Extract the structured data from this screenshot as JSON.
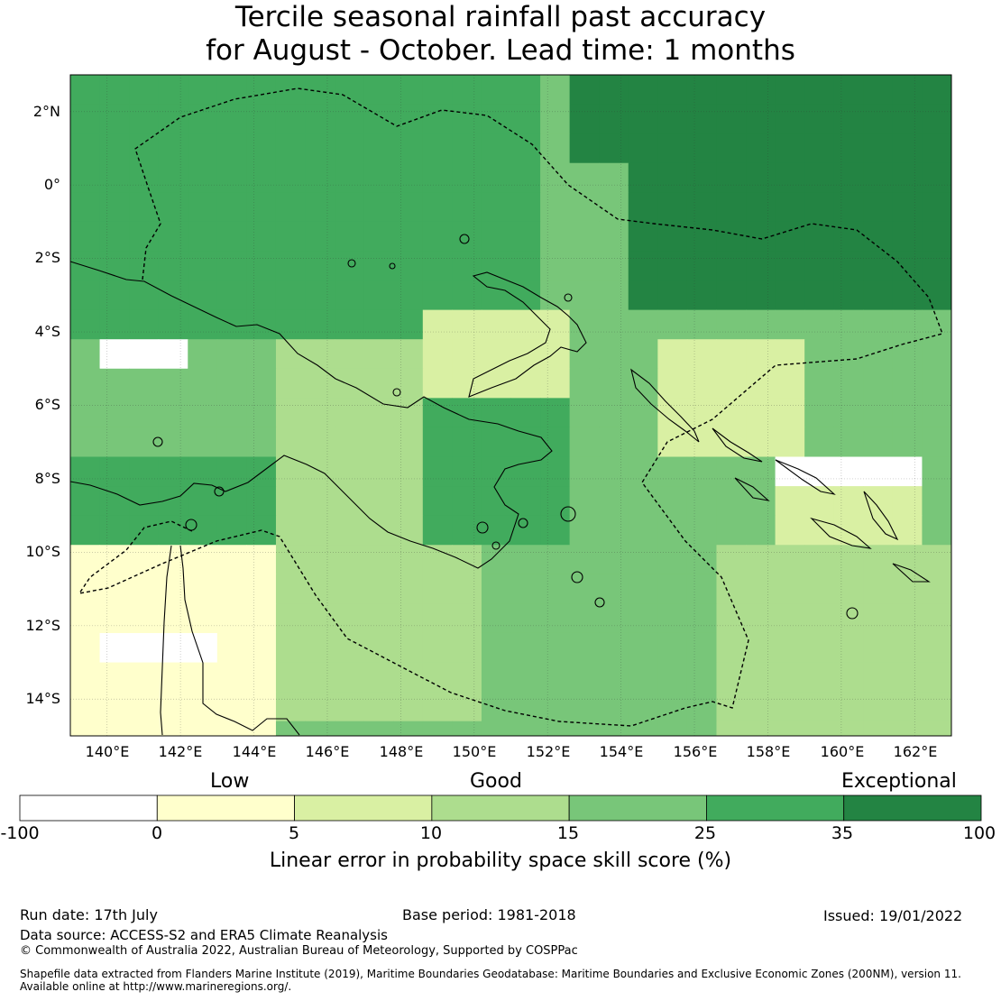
{
  "title": {
    "line1": "Tercile seasonal rainfall past accuracy",
    "line2": "for August - October. Lead time: 1 months"
  },
  "map": {
    "lon_range": [
      139,
      163
    ],
    "lat_range": [
      -15,
      3
    ],
    "lat_ticks": [
      "2°N",
      "0°",
      "2°S",
      "4°S",
      "6°S",
      "8°S",
      "10°S",
      "12°S",
      "14°S"
    ],
    "lon_ticks": [
      "140°E",
      "142°E",
      "144°E",
      "146°E",
      "148°E",
      "150°E",
      "152°E",
      "154°E",
      "156°E",
      "158°E",
      "160°E",
      "162°E"
    ]
  },
  "colorbar": {
    "categories": [
      "Low",
      "Good",
      "Exceptional"
    ],
    "ticks": [
      "-100",
      "0",
      "5",
      "10",
      "15",
      "25",
      "35",
      "100"
    ],
    "colors": [
      "#ffffff",
      "#ffffcc",
      "#d9f0a3",
      "#addd8e",
      "#78c679",
      "#41ab5d",
      "#238443"
    ],
    "label": "Linear error in probability space skill score (%)"
  },
  "footer": {
    "run_date": "Run date: 17th July",
    "base_period": "Base period: 1981-2018",
    "issued": "Issued: 19/01/2022",
    "data_source": "Data source: ACCESS-S2 and ERA5 Climate Reanalysis",
    "copyright": "© Commonwealth of Australia 2022, Australian Bureau of Meteorology, Supported by COSPPac",
    "shapefile_line1": "Shapefile data extracted from Flanders Marine Institute (2019), Maritime Boundaries Geodatabase: Maritime Boundaries and Exclusive Economic Zones (200NM), version 11.",
    "shapefile_line2": "Available online at http://www.marineregions.org/."
  }
}
